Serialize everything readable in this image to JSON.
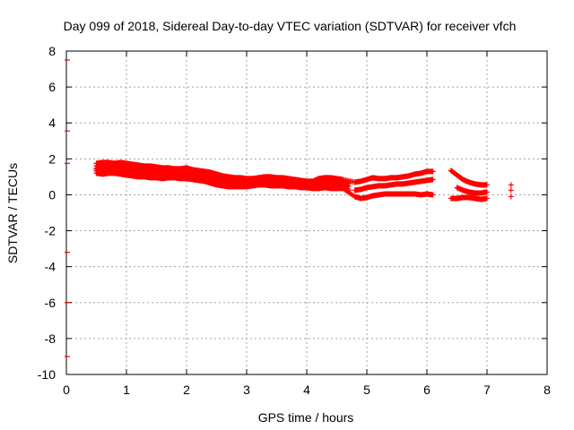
{
  "chart_data": {
    "type": "scatter",
    "title": "Day 099 of 2018, Sidereal Day-to-day VTEC variation (SDTVAR) for receiver vfch",
    "xlabel": "GPS time / hours",
    "ylabel": "SDTVAR / TECUs",
    "xlim": [
      0,
      8
    ],
    "ylim": [
      -10,
      8
    ],
    "x_ticks": [
      "0",
      "1",
      "2",
      "3",
      "4",
      "5",
      "6",
      "7",
      "8"
    ],
    "y_ticks": [
      "-10",
      "-8",
      "-6",
      "-4",
      "-2",
      "0",
      "2",
      "4",
      "6",
      "8"
    ],
    "grid": true,
    "legend": "none",
    "marker": "plus",
    "series_color": "#ff0000",
    "series": [
      {
        "points_band_upper": [
          [
            0.5,
            1.75
          ],
          [
            0.6,
            1.8
          ],
          [
            0.7,
            1.8
          ],
          [
            0.8,
            1.75
          ],
          [
            0.9,
            1.8
          ],
          [
            1.0,
            1.75
          ],
          [
            1.1,
            1.7
          ],
          [
            1.2,
            1.65
          ],
          [
            1.3,
            1.6
          ],
          [
            1.4,
            1.6
          ],
          [
            1.5,
            1.55
          ],
          [
            1.6,
            1.5
          ],
          [
            1.7,
            1.5
          ],
          [
            1.8,
            1.45
          ],
          [
            1.9,
            1.45
          ],
          [
            2.0,
            1.5
          ],
          [
            2.1,
            1.4
          ],
          [
            2.2,
            1.35
          ],
          [
            2.3,
            1.3
          ],
          [
            2.4,
            1.25
          ],
          [
            2.5,
            1.15
          ],
          [
            2.6,
            1.05
          ],
          [
            2.7,
            1.0
          ],
          [
            2.8,
            0.95
          ],
          [
            2.9,
            0.95
          ],
          [
            3.0,
            0.9
          ],
          [
            3.1,
            0.9
          ],
          [
            3.2,
            0.95
          ],
          [
            3.3,
            1.0
          ],
          [
            3.4,
            1.0
          ],
          [
            3.5,
            0.95
          ],
          [
            3.6,
            0.95
          ],
          [
            3.7,
            0.9
          ],
          [
            3.8,
            0.85
          ],
          [
            3.9,
            0.8
          ],
          [
            4.0,
            0.75
          ],
          [
            4.1,
            0.75
          ],
          [
            4.2,
            0.9
          ],
          [
            4.3,
            0.95
          ],
          [
            4.4,
            0.95
          ],
          [
            4.5,
            0.9
          ],
          [
            4.6,
            0.85
          ],
          [
            4.8,
            0.7
          ],
          [
            4.9,
            0.75
          ],
          [
            5.0,
            0.85
          ],
          [
            5.1,
            0.95
          ],
          [
            5.2,
            0.9
          ],
          [
            5.3,
            0.9
          ],
          [
            5.4,
            0.95
          ],
          [
            5.5,
            0.95
          ],
          [
            5.6,
            1.0
          ],
          [
            5.7,
            1.05
          ],
          [
            5.8,
            1.15
          ],
          [
            5.9,
            1.2
          ],
          [
            6.0,
            1.3
          ],
          [
            6.1,
            1.3
          ],
          [
            6.4,
            1.35
          ],
          [
            6.5,
            1.1
          ],
          [
            6.6,
            0.85
          ],
          [
            6.7,
            0.7
          ],
          [
            6.8,
            0.6
          ],
          [
            6.9,
            0.55
          ],
          [
            7.0,
            0.55
          ],
          [
            7.4,
            0.55
          ]
        ]
      },
      {
        "points_band_lower": [
          [
            0.5,
            1.2
          ],
          [
            0.6,
            1.15
          ],
          [
            0.7,
            1.2
          ],
          [
            0.8,
            1.2
          ],
          [
            0.9,
            1.15
          ],
          [
            1.0,
            1.1
          ],
          [
            1.1,
            1.05
          ],
          [
            1.2,
            1.0
          ],
          [
            1.3,
            1.0
          ],
          [
            1.4,
            0.95
          ],
          [
            1.5,
            0.95
          ],
          [
            1.6,
            0.9
          ],
          [
            1.7,
            0.95
          ],
          [
            1.8,
            0.95
          ],
          [
            1.9,
            0.9
          ],
          [
            2.0,
            0.9
          ],
          [
            2.1,
            0.85
          ],
          [
            2.2,
            0.8
          ],
          [
            2.3,
            0.75
          ],
          [
            2.4,
            0.65
          ],
          [
            2.5,
            0.55
          ],
          [
            2.6,
            0.5
          ],
          [
            2.7,
            0.45
          ],
          [
            2.8,
            0.45
          ],
          [
            2.9,
            0.45
          ],
          [
            3.0,
            0.45
          ],
          [
            3.1,
            0.5
          ],
          [
            3.2,
            0.55
          ],
          [
            3.3,
            0.55
          ],
          [
            3.4,
            0.5
          ],
          [
            3.5,
            0.5
          ],
          [
            3.6,
            0.5
          ],
          [
            3.7,
            0.45
          ],
          [
            3.8,
            0.45
          ],
          [
            3.9,
            0.4
          ],
          [
            4.0,
            0.4
          ],
          [
            4.1,
            0.35
          ],
          [
            4.2,
            0.35
          ],
          [
            4.3,
            0.4
          ],
          [
            4.4,
            0.35
          ],
          [
            4.5,
            0.35
          ],
          [
            4.6,
            0.35
          ],
          [
            4.8,
            -0.1
          ],
          [
            4.9,
            -0.2
          ],
          [
            5.0,
            -0.15
          ],
          [
            5.1,
            -0.05
          ],
          [
            5.2,
            0.0
          ],
          [
            5.3,
            0.05
          ],
          [
            5.4,
            0.05
          ],
          [
            5.5,
            0.05
          ],
          [
            5.6,
            0.05
          ],
          [
            5.7,
            0.05
          ],
          [
            5.8,
            0.05
          ],
          [
            5.9,
            0.0
          ],
          [
            6.0,
            0.05
          ],
          [
            6.1,
            0.0
          ],
          [
            6.4,
            -0.2
          ],
          [
            6.5,
            -0.2
          ],
          [
            6.6,
            -0.15
          ],
          [
            6.7,
            -0.15
          ],
          [
            6.8,
            -0.2
          ],
          [
            6.9,
            -0.25
          ],
          [
            7.0,
            -0.2
          ],
          [
            7.4,
            -0.1
          ]
        ]
      },
      {
        "points_middle": [
          [
            4.8,
            0.25
          ],
          [
            4.9,
            0.3
          ],
          [
            5.0,
            0.4
          ],
          [
            5.1,
            0.45
          ],
          [
            5.2,
            0.5
          ],
          [
            5.3,
            0.5
          ],
          [
            5.4,
            0.55
          ],
          [
            5.5,
            0.6
          ],
          [
            5.6,
            0.6
          ],
          [
            5.7,
            0.65
          ],
          [
            5.8,
            0.7
          ],
          [
            5.9,
            0.75
          ],
          [
            6.0,
            0.8
          ],
          [
            6.1,
            0.85
          ],
          [
            6.5,
            0.4
          ],
          [
            6.6,
            0.25
          ],
          [
            6.7,
            0.15
          ],
          [
            6.8,
            0.1
          ],
          [
            6.9,
            0.1
          ],
          [
            7.0,
            0.15
          ],
          [
            7.4,
            0.25
          ]
        ]
      }
    ],
    "outlier_ticks_at_x0": [
      7.5,
      3.55,
      1.75,
      -3.2,
      -6.0,
      -9.0
    ]
  }
}
